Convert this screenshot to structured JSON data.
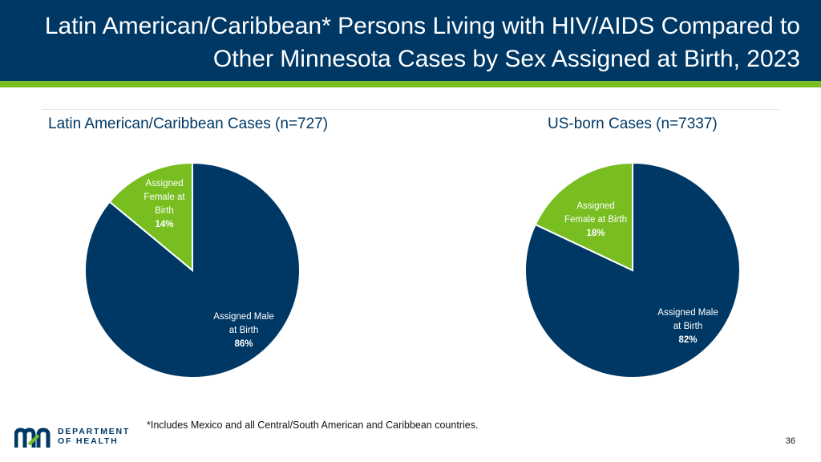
{
  "header": {
    "title_line1": "Latin American/Caribbean* Persons Living with HIV/AIDS Compared to",
    "title_line2": "Other Minnesota Cases by Sex Assigned at Birth, 2023"
  },
  "colors": {
    "male": "#003865",
    "female": "#78BE21",
    "header": "#003865",
    "accent": "#78BE21"
  },
  "chart_data": [
    {
      "type": "pie",
      "title": "Latin American/Caribbean Cases (n=727)",
      "slices": [
        {
          "label_lines": [
            "Assigned Male",
            "at Birth",
            "86%"
          ],
          "value": 86,
          "color": "#003865"
        },
        {
          "label_lines": [
            "Assigned",
            "Female at",
            "Birth",
            "14%"
          ],
          "value": 14,
          "color": "#78BE21"
        }
      ]
    },
    {
      "type": "pie",
      "title": "US-born Cases (n=7337)",
      "slices": [
        {
          "label_lines": [
            "Assigned Male",
            "at Birth",
            "82%"
          ],
          "value": 82,
          "color": "#003865"
        },
        {
          "label_lines": [
            "Assigned",
            "Female at Birth",
            "18%"
          ],
          "value": 18,
          "color": "#78BE21"
        }
      ]
    }
  ],
  "footnote": "*Includes Mexico and all Central/South American and Caribbean countries.",
  "page_number": "36",
  "logo": {
    "line1": "DEPARTMENT",
    "line2": "OF HEALTH"
  }
}
